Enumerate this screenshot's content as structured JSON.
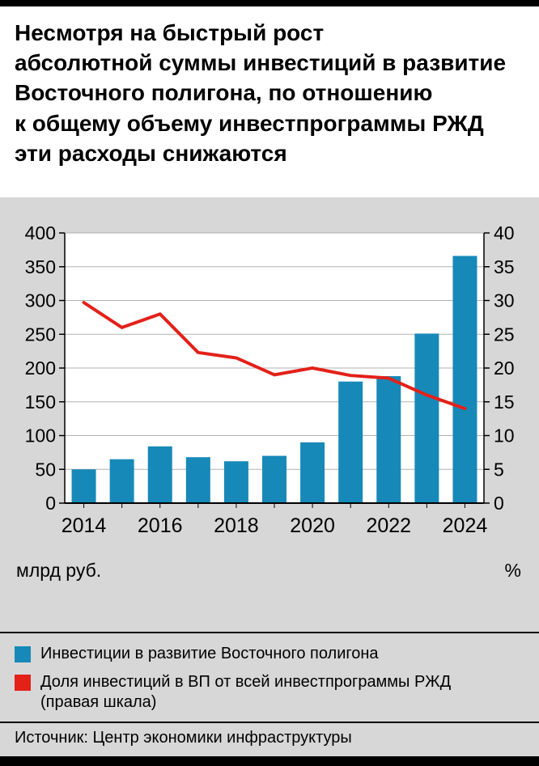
{
  "header": {
    "title_lines": [
      "Несмотря на быстрый рост",
      "абсолютной суммы инвестиций в развитие",
      "Восточного полигона, по отношению",
      "к общему объему инвестпрограммы РЖД",
      "эти расходы снижаются"
    ]
  },
  "chart_data": {
    "type": "bar",
    "subtype": "bar-with-line-overlay",
    "categories": [
      "2014",
      "2015",
      "2016",
      "2017",
      "2018",
      "2019",
      "2020",
      "2021",
      "2022",
      "2023",
      "2024"
    ],
    "x_tick_labels": [
      "2014",
      "2016",
      "2018",
      "2020",
      "2022",
      "2024"
    ],
    "series": [
      {
        "name": "Инвестиции в развитие Восточного полигона",
        "type": "bar",
        "axis": "left",
        "color": "#1789b8",
        "values": [
          50,
          65,
          84,
          68,
          62,
          70,
          90,
          180,
          188,
          251,
          366
        ]
      },
      {
        "name": "Доля инвестиций в ВП от всей инвестпрограммы РЖД (правая шкала)",
        "type": "line",
        "axis": "right",
        "color": "#e32119",
        "values": [
          29.7,
          26,
          28,
          22.3,
          21.5,
          19,
          20,
          18.9,
          18.5,
          16,
          14
        ]
      }
    ],
    "left_axis": {
      "label": "млрд руб.",
      "min": 0,
      "max": 400,
      "step": 50
    },
    "right_axis": {
      "label": "%",
      "min": 0,
      "max": 40,
      "step": 5
    },
    "grid": true,
    "legend_position": "bottom"
  },
  "legend": [
    {
      "color": "#1789b8",
      "label": "Инвестиции в развитие Восточного полигона"
    },
    {
      "color": "#e32119",
      "label_lines": [
        "Доля инвестиций в ВП от всей инвестпрограммы РЖД",
        "(правая шкала)"
      ]
    }
  ],
  "source": "Источник: Центр экономики инфраструктуры"
}
